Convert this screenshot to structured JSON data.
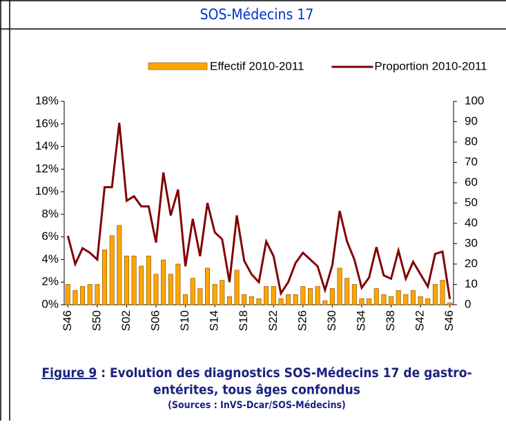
{
  "header": {
    "title": "SOS-Médecins 17"
  },
  "chart_data": {
    "type": "bar_line",
    "categories": [
      "S46",
      null,
      null,
      null,
      "S50",
      null,
      null,
      null,
      "S02",
      null,
      null,
      null,
      "S06",
      null,
      null,
      null,
      "S10",
      null,
      null,
      null,
      "S14",
      null,
      null,
      null,
      "S18",
      null,
      null,
      null,
      "S22",
      null,
      null,
      null,
      "S26",
      null,
      null,
      null,
      "S30",
      null,
      null,
      null,
      "S34",
      null,
      null,
      null,
      "S38",
      null,
      null,
      null,
      "S42",
      null,
      null,
      null,
      "S46"
    ],
    "series": [
      {
        "name": "Effectif 2010-2011",
        "type": "bar",
        "axis": "y2",
        "color": "#ffa500",
        "values": [
          10,
          7,
          9,
          10,
          10,
          27,
          34,
          39,
          24,
          24,
          19,
          24,
          15,
          22,
          15,
          20,
          5,
          13,
          8,
          18,
          10,
          12,
          4,
          17,
          5,
          4,
          3,
          9,
          9,
          3,
          5,
          5,
          9,
          8,
          9,
          2,
          8,
          18,
          13,
          10,
          3,
          3,
          8,
          5,
          4,
          7,
          5,
          7,
          4,
          3,
          10,
          12,
          1
        ]
      },
      {
        "name": "Proportion 2010-2011",
        "type": "line",
        "axis": "y",
        "color": "#800000",
        "values": [
          6.1,
          3.6,
          5.0,
          4.6,
          4.0,
          10.4,
          10.4,
          16.1,
          9.2,
          9.6,
          8.7,
          8.7,
          5.5,
          11.7,
          7.9,
          10.2,
          3.4,
          7.6,
          4.3,
          9.0,
          6.4,
          5.8,
          2.0,
          7.9,
          3.9,
          2.7,
          2.0,
          5.6,
          4.3,
          1.0,
          2.0,
          3.7,
          4.6,
          4.0,
          3.4,
          1.3,
          3.5,
          8.3,
          5.6,
          4.0,
          1.5,
          2.4,
          5.1,
          2.6,
          2.3,
          4.8,
          2.3,
          3.8,
          2.7,
          1.6,
          4.5,
          4.7,
          0.5
        ]
      }
    ],
    "ylim": [
      0,
      18
    ],
    "yticks": [
      {
        "value": 0,
        "label": "0%"
      },
      {
        "value": 2,
        "label": "2%"
      },
      {
        "value": 4,
        "label": "4%"
      },
      {
        "value": 6,
        "label": "6%"
      },
      {
        "value": 8,
        "label": "8%"
      },
      {
        "value": 10,
        "label": "10%"
      },
      {
        "value": 12,
        "label": "12%"
      },
      {
        "value": 14,
        "label": "14%"
      },
      {
        "value": 16,
        "label": "16%"
      },
      {
        "value": 18,
        "label": "18%"
      }
    ],
    "y2lim": [
      0,
      100
    ],
    "y2ticks": [
      0,
      10,
      20,
      30,
      40,
      50,
      60,
      70,
      80,
      90,
      100
    ],
    "legend": "top"
  },
  "caption": {
    "label": "Figure 9",
    "line1": " : Evolution des diagnostics SOS-Médecins 17 de gastro-",
    "line2": "entérites, tous âges confondus",
    "source": "(Sources : InVS-Dcar/SOS-Médecins)"
  }
}
